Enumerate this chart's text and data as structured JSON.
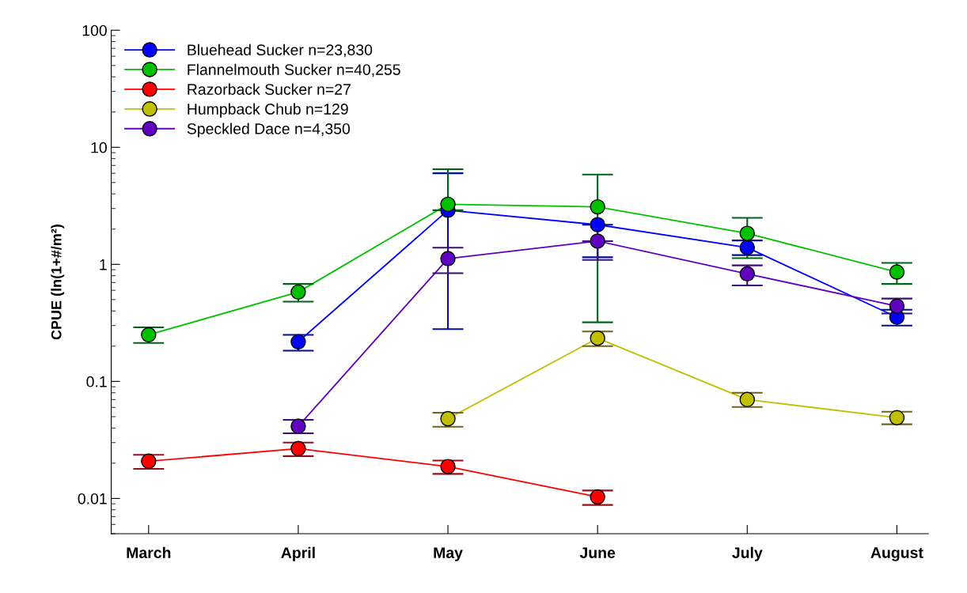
{
  "chart_data": {
    "type": "line",
    "ylabel": "CPUE (ln(1+#/m²)",
    "categories": [
      "March",
      "April",
      "May",
      "June",
      "July",
      "August"
    ],
    "log": true,
    "ylim": [
      0.005,
      100
    ],
    "yticks": [
      0.01,
      0.1,
      1,
      10,
      100
    ],
    "grid": false,
    "legend": "top left",
    "marker": "circle",
    "line_style": "solid",
    "series": [
      {
        "name": "Bluehead Sucker n=23,830",
        "color": "#0000ff",
        "values": [
          null,
          0.218,
          2.9,
          2.18,
          1.39,
          0.354
        ],
        "errors": [
          null,
          [
            0.183,
            0.25
          ],
          [
            0.28,
            6.0
          ],
          [
            1.15,
            2.18
          ],
          [
            1.2,
            1.6
          ],
          [
            0.3,
            0.41
          ]
        ]
      },
      {
        "name": "Flannelmouth Sucker n=40,255",
        "color": "#00c000",
        "values": [
          0.25,
          0.58,
          3.26,
          3.1,
          1.84,
          0.86
        ],
        "errors": [
          [
            0.213,
            0.29
          ],
          [
            0.48,
            0.68
          ],
          [
            2.9,
            6.5
          ],
          [
            0.32,
            5.85
          ],
          [
            1.13,
            2.5
          ],
          [
            0.68,
            1.03
          ]
        ]
      },
      {
        "name": "Razorback Sucker n=27",
        "color": "#ff0000",
        "values": [
          0.0208,
          0.0267,
          0.0187,
          0.0103,
          null,
          null
        ],
        "errors": [
          [
            0.0179,
            0.0236
          ],
          [
            0.023,
            0.03
          ],
          [
            0.0162,
            0.0211
          ],
          [
            0.0088,
            0.0117
          ],
          null,
          null
        ]
      },
      {
        "name": "Humpback Chub n=129",
        "color": "#c0c000",
        "values": [
          null,
          null,
          0.048,
          0.234,
          0.07,
          0.049
        ],
        "errors": [
          null,
          null,
          [
            0.041,
            0.054
          ],
          [
            0.2,
            0.267
          ],
          [
            0.0605,
            0.08
          ],
          [
            0.043,
            0.055
          ]
        ]
      },
      {
        "name": "Speckled Dace n=4,350",
        "color": "#6000c0",
        "values": [
          null,
          0.0414,
          1.12,
          1.58,
          0.83,
          0.44
        ],
        "errors": [
          null,
          [
            0.036,
            0.047
          ],
          [
            0.84,
            1.39
          ],
          [
            1.09,
            1.58
          ],
          [
            0.66,
            0.98
          ],
          [
            0.38,
            0.51
          ]
        ]
      }
    ]
  }
}
